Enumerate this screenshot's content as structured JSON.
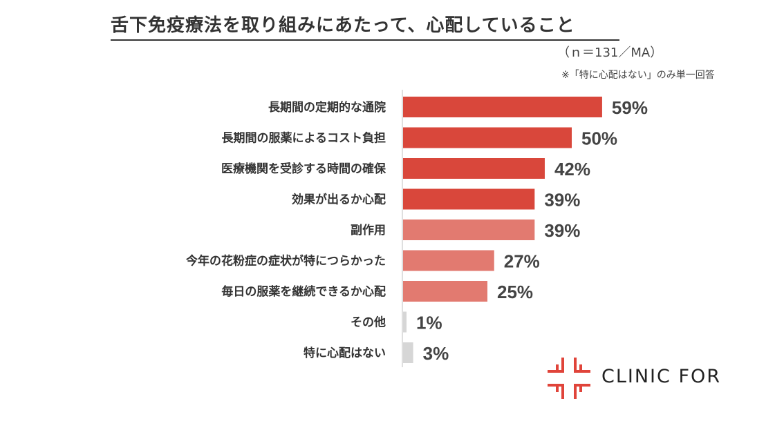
{
  "title": "舌下免疫療法を取り組みにあたって、心配していること",
  "sample_note": "（ｎ＝131／MA）",
  "footnote": "※「特に心配はない」のみ単一回答",
  "brand": "CLINIC FOR",
  "colors": {
    "dark": "#d9473b",
    "light": "#e27a70",
    "gray": "#d6d6d6"
  },
  "chart_data": {
    "type": "bar",
    "orientation": "horizontal",
    "categories": [
      "長期間の定期的な通院",
      "長期間の服薬によるコスト負担",
      "医療機関を受診する時間の確保",
      "効果が出るか心配",
      "副作用",
      "今年の花粉症の症状が特につらかった",
      "毎日の服薬を継続できるか心配",
      "その他",
      "特に心配はない"
    ],
    "values": [
      59,
      50,
      42,
      39,
      39,
      27,
      25,
      1,
      3
    ],
    "value_labels": [
      "59%",
      "50%",
      "42%",
      "39%",
      "39%",
      "27%",
      "25%",
      "1%",
      "3%"
    ],
    "bar_color_groups": [
      "dark",
      "dark",
      "dark",
      "dark",
      "light",
      "light",
      "light",
      "gray",
      "gray"
    ],
    "xlim": [
      0,
      100
    ],
    "grid": false,
    "legend": "none"
  }
}
